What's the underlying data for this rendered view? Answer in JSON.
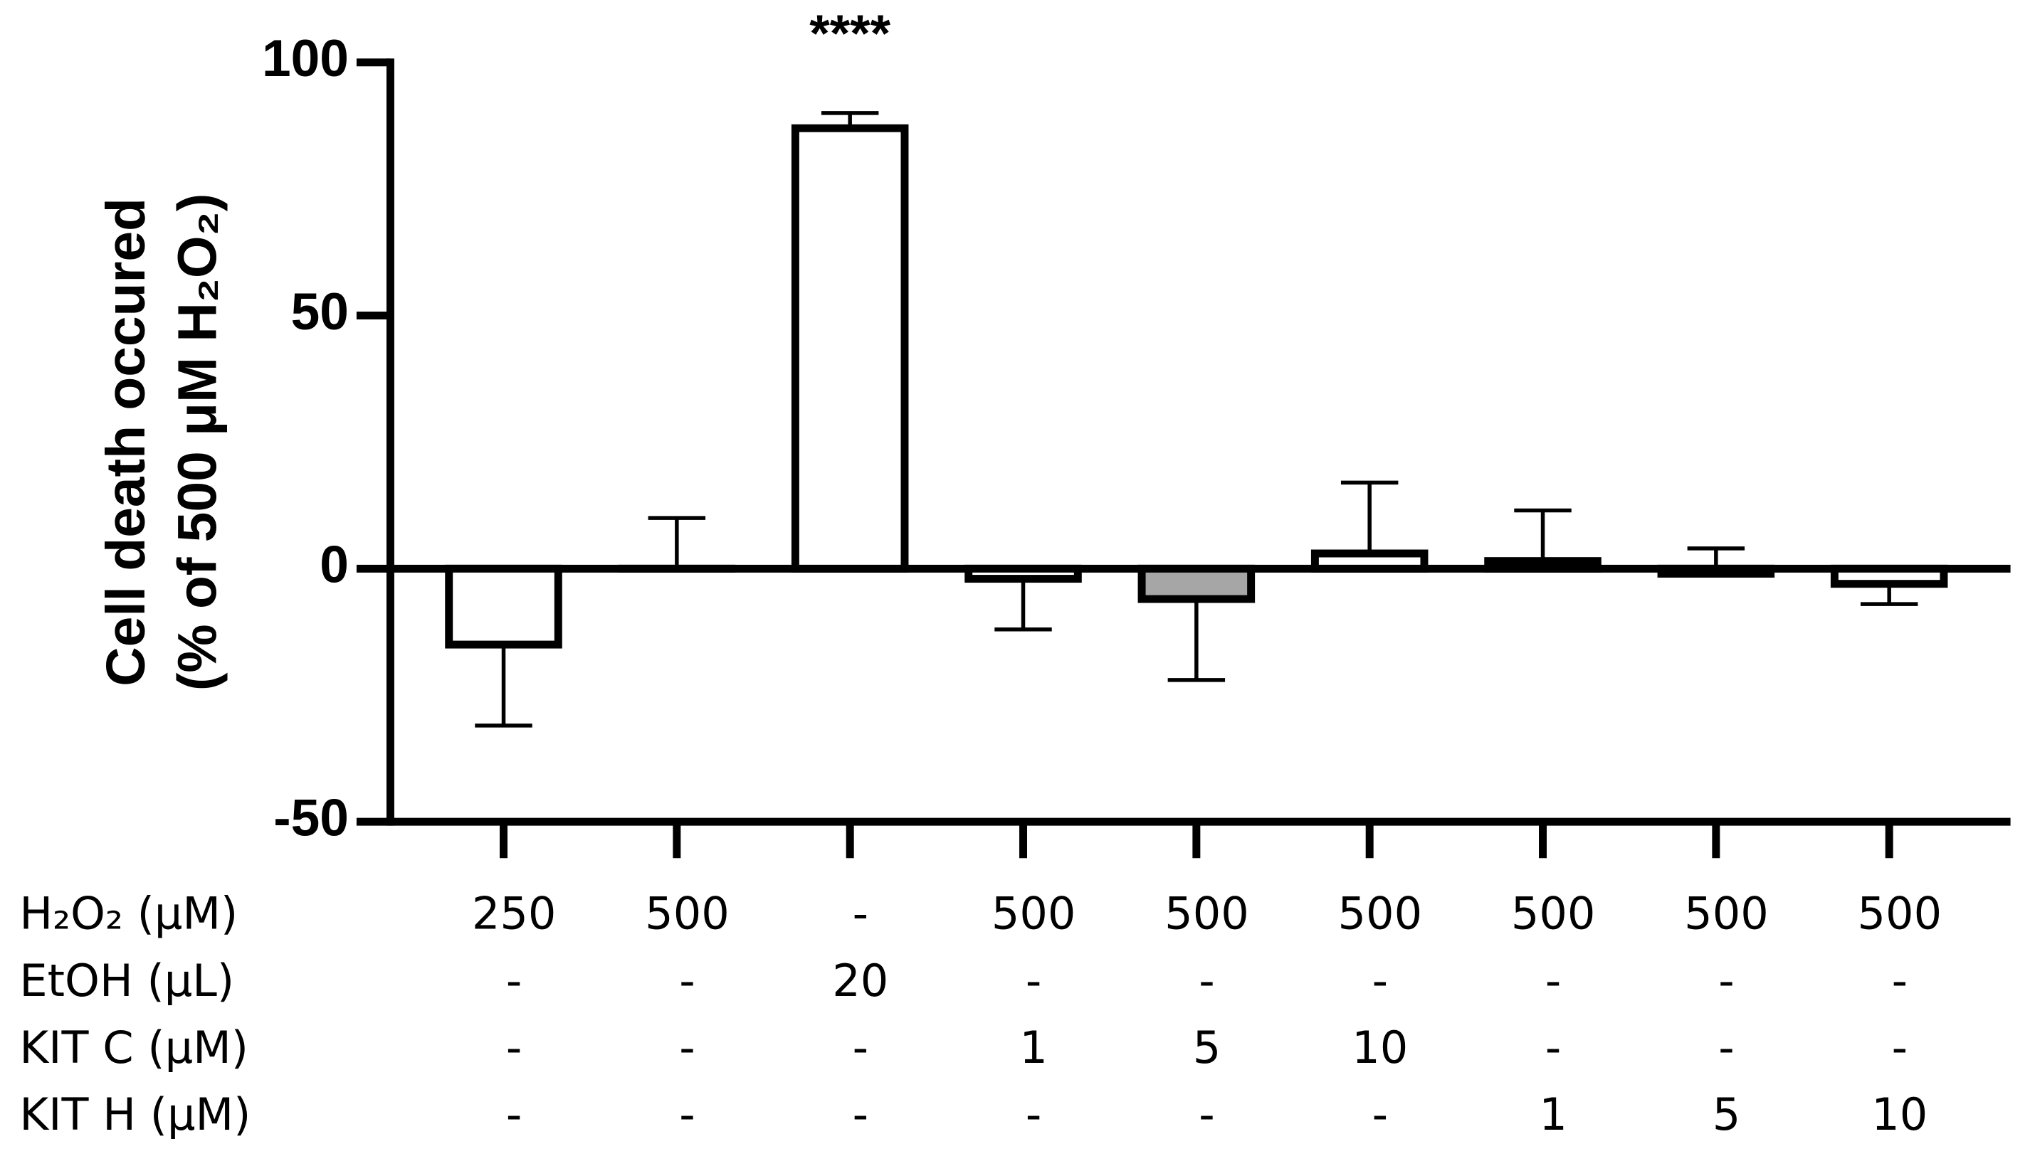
{
  "chart_data": {
    "type": "bar",
    "y_label_lines": [
      "Cell death occured",
      "(% of 500 μM H₂O₂)"
    ],
    "values": [
      -15,
      0,
      87,
      -2,
      -6,
      3,
      1.5,
      -1,
      -3
    ],
    "errors": [
      16,
      10,
      3,
      10,
      16,
      14,
      10,
      5,
      4
    ],
    "error_side": [
      "down",
      "up",
      "up",
      "down",
      "down",
      "up",
      "up",
      "up",
      "down"
    ],
    "colors": [
      "#ffffff",
      "#ffffff",
      "#ffffff",
      "#ffffff",
      "#a6a6a6",
      "#ffffff",
      "#ffffff",
      "#ffffff",
      "#ffffff"
    ],
    "edge_color": "#000000",
    "ylim": [
      -50,
      100
    ],
    "yticks": [
      -50,
      0,
      50,
      100
    ],
    "annotations": [
      {
        "text": "****",
        "bar": 2
      }
    ],
    "conditions": [
      {
        "label": "H₂O₂ (μM)",
        "cells": [
          "250",
          "500",
          "-",
          "500",
          "500",
          "500",
          "500",
          "500",
          "500"
        ]
      },
      {
        "label": "EtOH (μL)",
        "cells": [
          "-",
          "-",
          "20",
          "-",
          "-",
          "-",
          "-",
          "-",
          "-"
        ]
      },
      {
        "label": "KIT C (μM)",
        "cells": [
          "-",
          "-",
          "-",
          "1",
          "5",
          "10",
          "-",
          "-",
          "-"
        ]
      },
      {
        "label": "KIT H (μM)",
        "cells": [
          "-",
          "-",
          "-",
          "-",
          "-",
          "-",
          "1",
          "5",
          "10"
        ]
      }
    ]
  }
}
